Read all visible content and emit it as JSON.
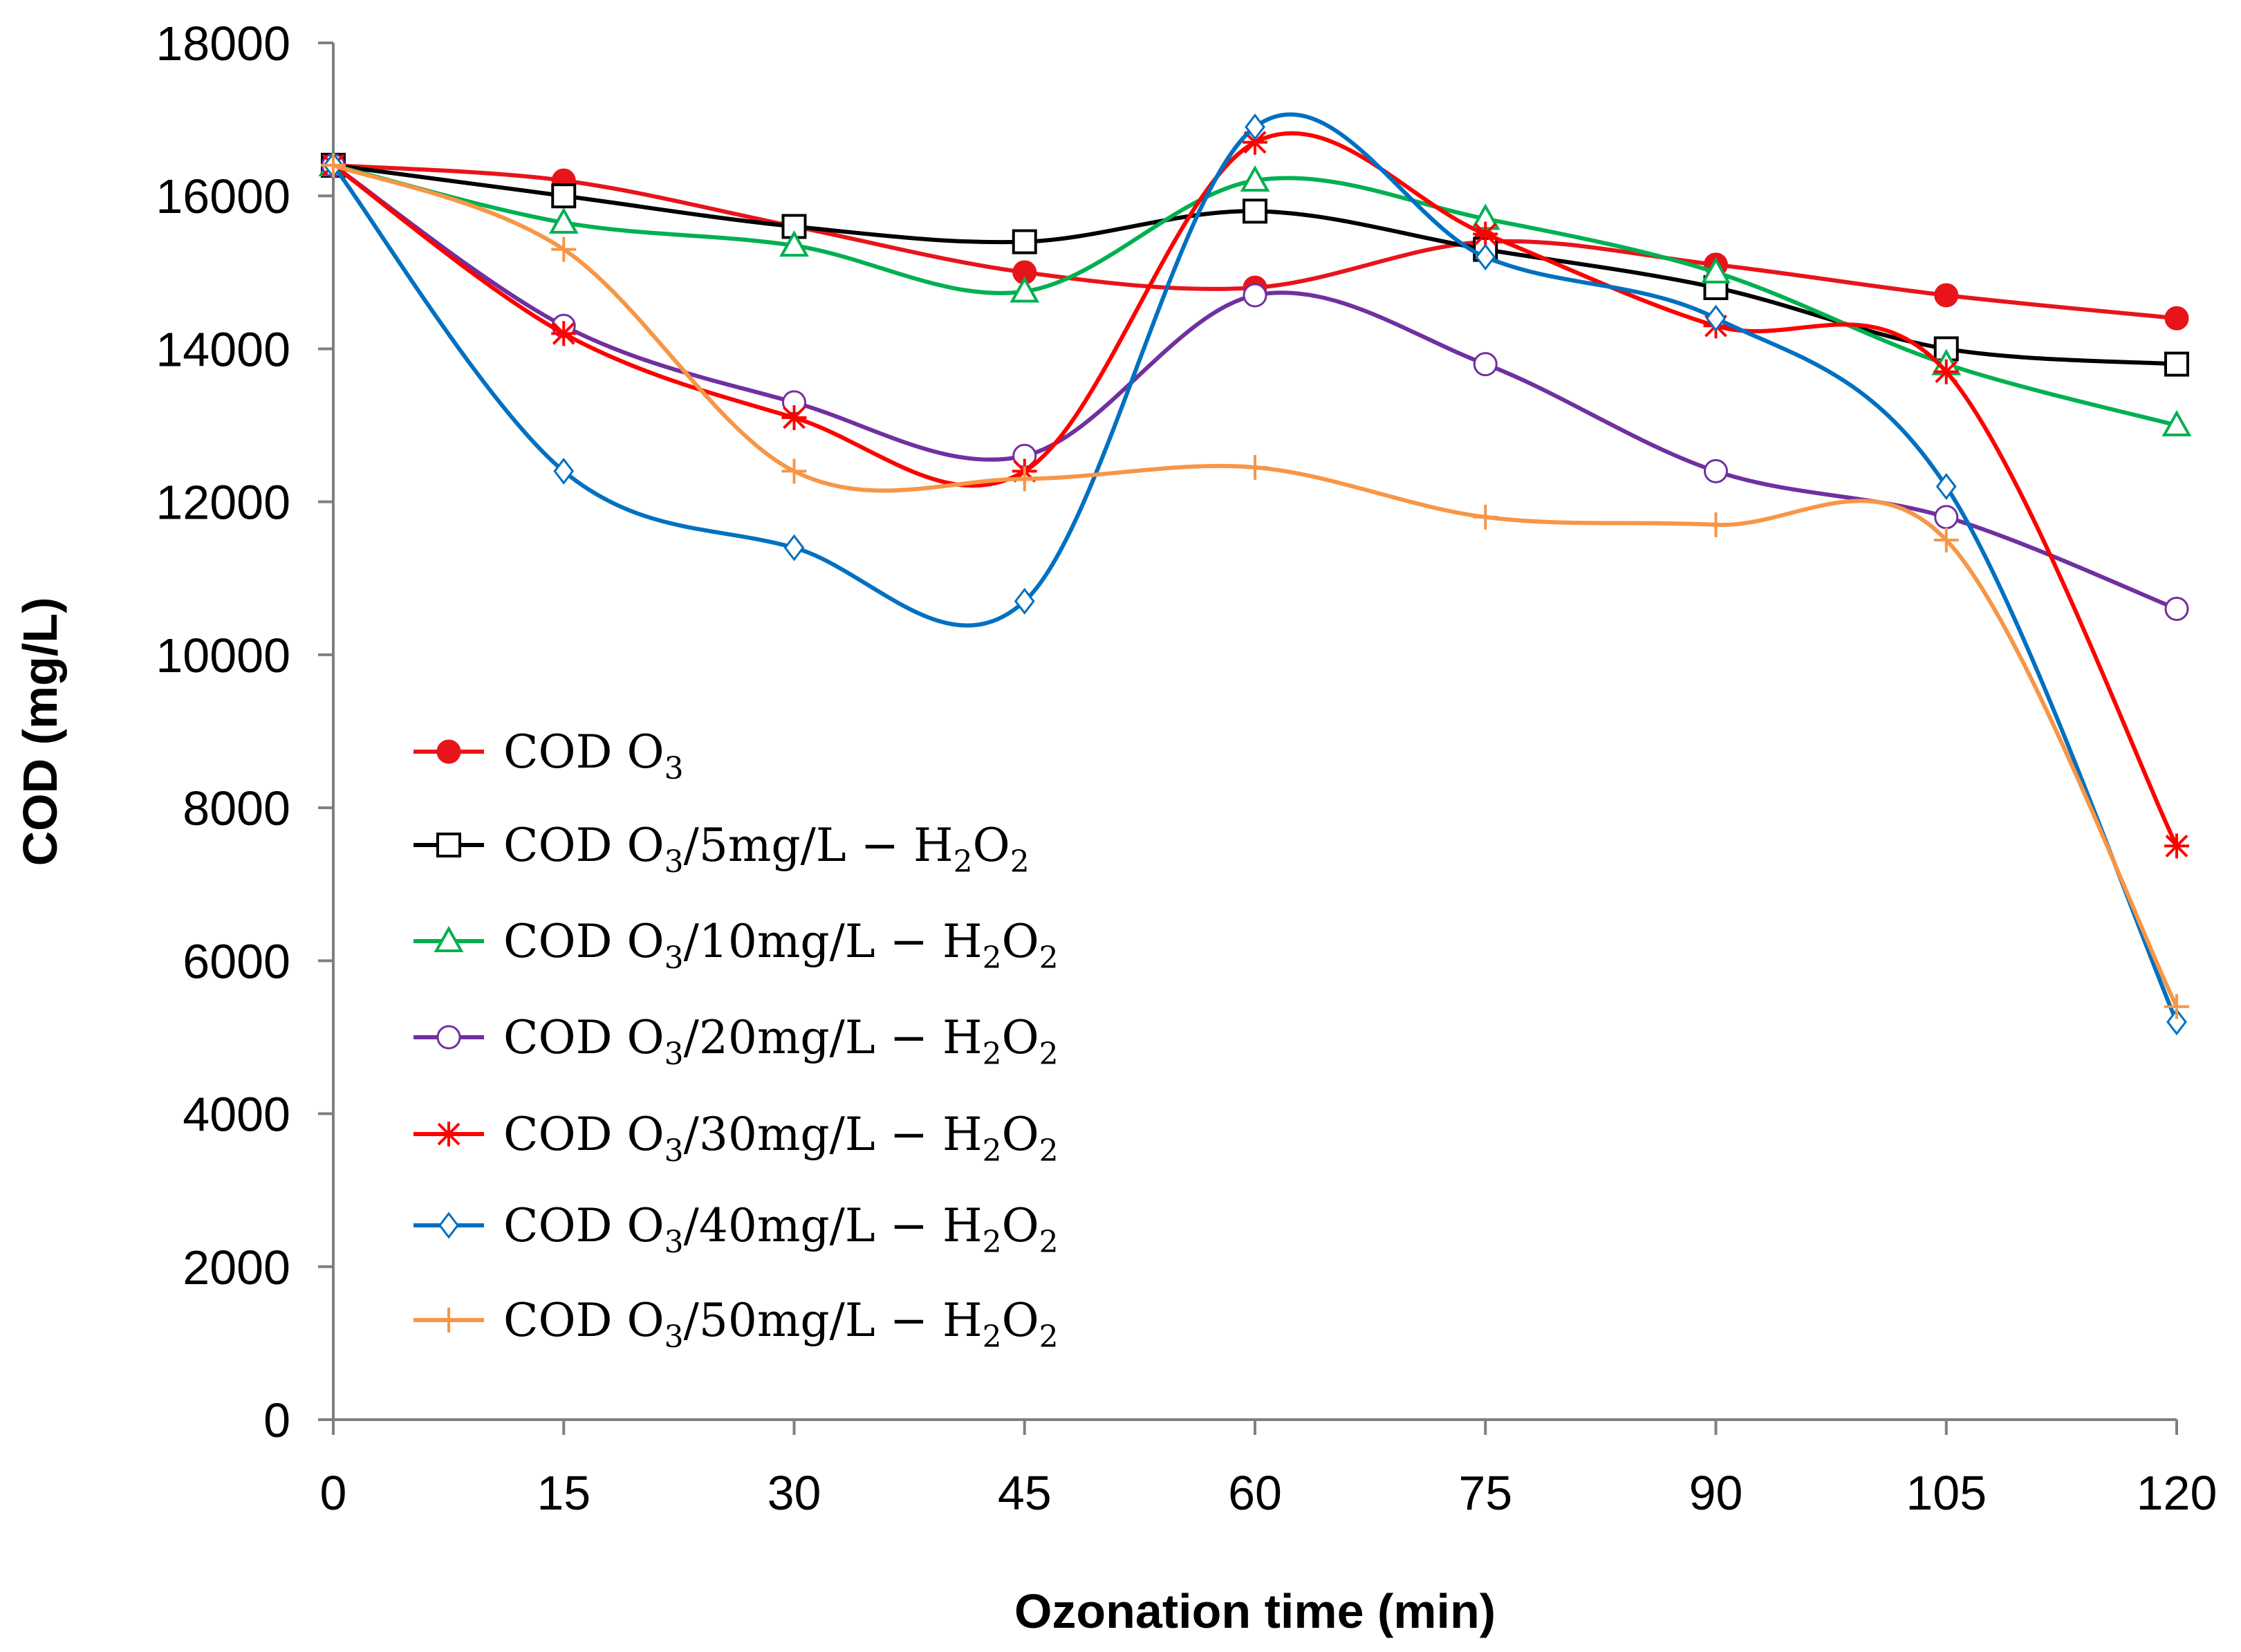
{
  "chart_data": {
    "type": "line",
    "xlabel": "Ozonation time (min)",
    "ylabel": "COD (mg/L)",
    "xlim": [
      0,
      120
    ],
    "ylim": [
      0,
      18000
    ],
    "x": [
      0,
      15,
      30,
      45,
      60,
      75,
      90,
      105,
      120
    ],
    "x_tick_labels": [
      "0",
      "15",
      "30",
      "45",
      "60",
      "75",
      "90",
      "105",
      "120"
    ],
    "y_ticks": [
      0,
      2000,
      4000,
      6000,
      8000,
      10000,
      12000,
      14000,
      16000,
      18000
    ],
    "y_tick_labels": [
      "0",
      "2000",
      "4000",
      "6000",
      "8000",
      "10000",
      "12000",
      "14000",
      "16000",
      "18000"
    ],
    "grid": false,
    "legend_position": "left-lower",
    "series": [
      {
        "name": "COD O3",
        "legend": {
          "pre": "COD O",
          "sub": "3",
          "post": ""
        },
        "color": "#e8141b",
        "marker": "filled-circle",
        "values": [
          16400,
          16200,
          15600,
          15000,
          14800,
          15400,
          15100,
          14700,
          14400
        ]
      },
      {
        "name": "COD O3/5mg/L − H2O2",
        "legend": {
          "pre": "COD O",
          "sub": "3",
          "post": "/5mg/L − H",
          "sub2": "2",
          "post2": "O",
          "sub3": "2"
        },
        "color": "#000000",
        "marker": "open-square",
        "values": [
          16400,
          16000,
          15600,
          15400,
          15800,
          15300,
          14800,
          14000,
          13800
        ]
      },
      {
        "name": "COD O3/10mg/L − H2O2",
        "legend": {
          "pre": "COD O",
          "sub": "3",
          "post": "/10mg/L − H",
          "sub2": "2",
          "post2": "O",
          "sub3": "2"
        },
        "color": "#00b050",
        "marker": "open-triangle",
        "values": [
          16400,
          15650,
          15350,
          14750,
          16200,
          15700,
          15000,
          13800,
          13000
        ]
      },
      {
        "name": "COD O3/20mg/L − H2O2",
        "legend": {
          "pre": "COD O",
          "sub": "3",
          "post": "/20mg/L − H",
          "sub2": "2",
          "post2": "O",
          "sub3": "2"
        },
        "color": "#7030a0",
        "marker": "open-circle",
        "values": [
          16400,
          14300,
          13300,
          12600,
          14700,
          13800,
          12400,
          11800,
          10600
        ]
      },
      {
        "name": "COD O3/30mg/L − H2O2",
        "legend": {
          "pre": "COD O",
          "sub": "3",
          "post": "/30mg/L − H",
          "sub2": "2",
          "post2": "O",
          "sub3": "2"
        },
        "color": "#ff0000",
        "marker": "asterisk",
        "values": [
          16400,
          14200,
          13100,
          12400,
          16700,
          15500,
          14300,
          13700,
          7500
        ]
      },
      {
        "name": "COD O3/40mg/L − H2O2",
        "legend": {
          "pre": "COD O",
          "sub": "3",
          "post": "/40mg/L − H",
          "sub2": "2",
          "post2": "O",
          "sub3": "2"
        },
        "color": "#0070c0",
        "marker": "open-diamond",
        "values": [
          16400,
          12400,
          11400,
          10700,
          16900,
          15200,
          14400,
          12200,
          5200
        ]
      },
      {
        "name": "COD O3/50mg/L − H2O2",
        "legend": {
          "pre": "COD O",
          "sub": "3",
          "post": "/50mg/L − H",
          "sub2": "2",
          "post2": "O",
          "sub3": "2"
        },
        "color": "#f79646",
        "marker": "plus",
        "values": [
          16400,
          15300,
          12400,
          12300,
          12450,
          11800,
          11700,
          11500,
          5400
        ]
      }
    ]
  }
}
